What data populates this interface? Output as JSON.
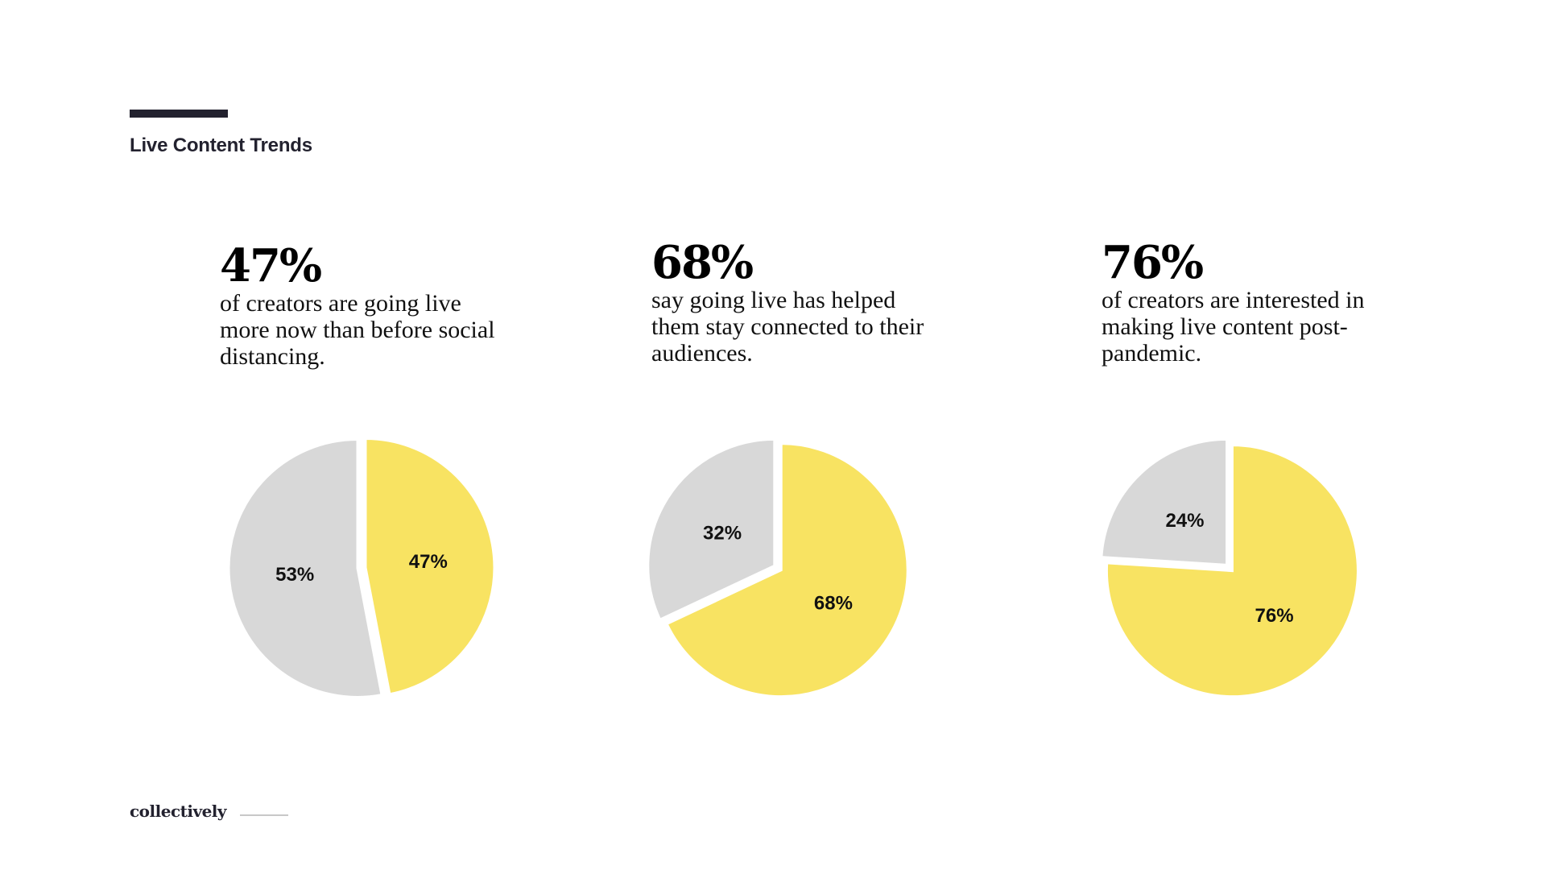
{
  "header": {
    "title": "Live Content Trends",
    "accent_color": "#23222f"
  },
  "stats": [
    {
      "value": "47%",
      "description": "of creators are going live more now than before social distancing."
    },
    {
      "value": "68%",
      "description": "say going live has helped them stay connected to their audiences."
    },
    {
      "value": "76%",
      "description": "of creators are interested in making live content post-pandemic."
    }
  ],
  "colors": {
    "highlight": "#f8e362",
    "remainder": "#d8d8d8"
  },
  "chart_data": [
    {
      "type": "pie",
      "title": "",
      "slices": [
        {
          "label": "47%",
          "value": 47,
          "color": "#f8e362"
        },
        {
          "label": "53%",
          "value": 53,
          "color": "#d8d8d8"
        }
      ]
    },
    {
      "type": "pie",
      "title": "",
      "slices": [
        {
          "label": "68%",
          "value": 68,
          "color": "#f8e362"
        },
        {
          "label": "32%",
          "value": 32,
          "color": "#d8d8d8"
        }
      ]
    },
    {
      "type": "pie",
      "title": "",
      "slices": [
        {
          "label": "76%",
          "value": 76,
          "color": "#f8e362"
        },
        {
          "label": "24%",
          "value": 24,
          "color": "#d8d8d8"
        }
      ]
    }
  ],
  "footer": {
    "brand": "collectively"
  }
}
